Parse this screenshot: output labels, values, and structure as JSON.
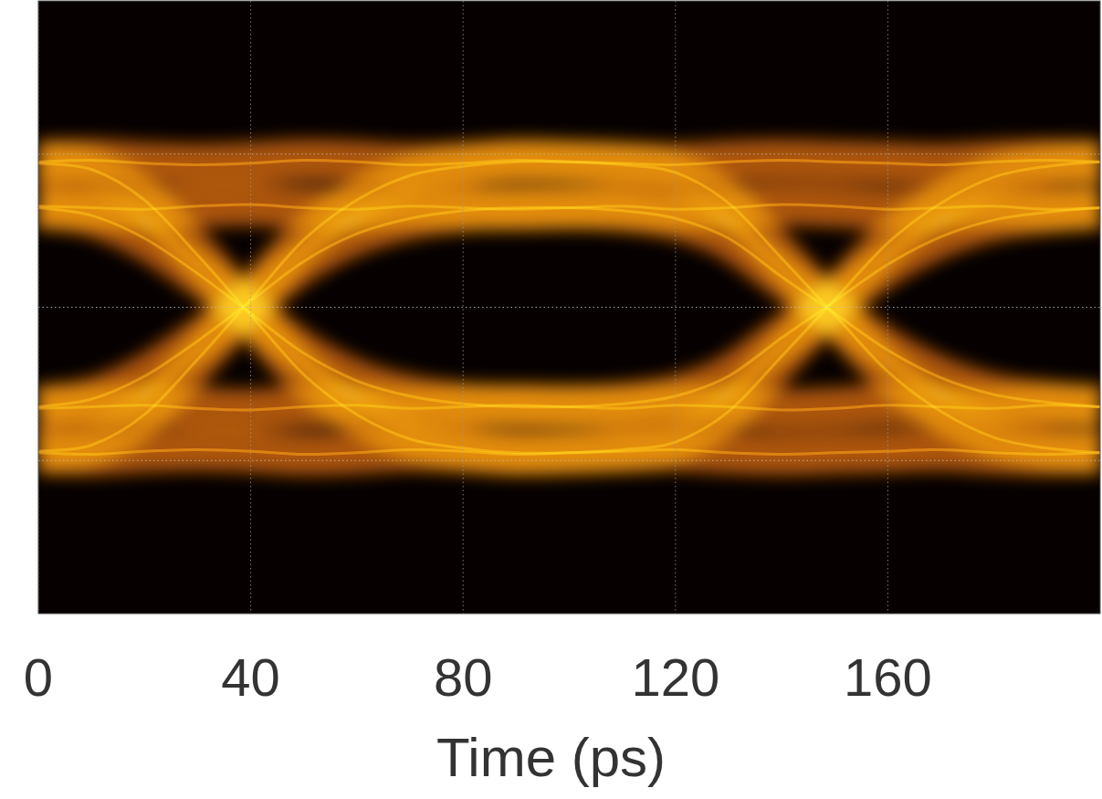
{
  "chart_data": {
    "type": "eye_diagram",
    "x_label": "Time (ps)",
    "x": [
      0,
      10,
      20,
      30,
      40,
      50,
      60,
      70,
      80,
      90,
      100,
      110,
      120,
      130,
      140,
      150,
      160,
      170,
      180,
      190,
      200
    ],
    "xlim": [
      0,
      200
    ],
    "xticks": [
      0,
      40,
      80,
      120,
      160
    ],
    "ylim": [
      -2,
      2
    ],
    "yticks": [
      -1,
      0,
      1
    ],
    "grid": true,
    "tick_labels": "x",
    "color": "#ff6e0a",
    "series": [
      {
        "values": [
          -0.95,
          -0.96,
          -0.94,
          -0.93,
          -0.94,
          -0.96,
          -0.95,
          -0.93,
          -0.94,
          -0.96,
          -0.95,
          -0.94,
          -0.93,
          -0.95,
          -0.96,
          -0.95,
          -0.94,
          -0.93,
          -0.95,
          -0.96,
          -0.95
        ]
      },
      {
        "values": [
          -0.95,
          -0.96,
          -0.94,
          -0.93,
          -0.94,
          -0.96,
          -0.95,
          -0.93,
          -0.94,
          -0.96,
          -0.95,
          -0.93,
          -0.88,
          -0.68,
          -0.32,
          0.05,
          0.42,
          0.68,
          0.85,
          0.92,
          0.95
        ]
      },
      {
        "values": [
          -0.94,
          -0.9,
          -0.7,
          -0.34,
          0.05,
          0.44,
          0.7,
          0.86,
          0.92,
          0.95,
          0.95,
          0.93,
          0.88,
          0.68,
          0.32,
          -0.05,
          -0.42,
          -0.68,
          -0.85,
          -0.92,
          -0.95
        ]
      },
      {
        "values": [
          -0.94,
          -0.9,
          -0.7,
          -0.34,
          0.05,
          0.44,
          0.7,
          0.86,
          0.92,
          0.95,
          0.95,
          0.94,
          0.93,
          0.95,
          0.96,
          0.95,
          0.94,
          0.93,
          0.95,
          0.96,
          0.95
        ]
      },
      {
        "values": [
          0.94,
          0.9,
          0.7,
          0.34,
          -0.05,
          -0.44,
          -0.7,
          -0.86,
          -0.92,
          -0.95,
          -0.95,
          -0.94,
          -0.93,
          -0.95,
          -0.96,
          -0.95,
          -0.94,
          -0.93,
          -0.95,
          -0.96,
          -0.95
        ]
      },
      {
        "values": [
          0.94,
          0.9,
          0.7,
          0.34,
          -0.05,
          -0.44,
          -0.7,
          -0.86,
          -0.92,
          -0.95,
          -0.95,
          -0.93,
          -0.88,
          -0.68,
          -0.32,
          0.05,
          0.42,
          0.68,
          0.85,
          0.92,
          0.95
        ]
      },
      {
        "values": [
          0.95,
          0.96,
          0.94,
          0.93,
          0.94,
          0.96,
          0.95,
          0.93,
          0.94,
          0.96,
          0.95,
          0.93,
          0.88,
          0.68,
          0.32,
          -0.05,
          -0.42,
          -0.68,
          -0.85,
          -0.92,
          -0.95
        ]
      },
      {
        "values": [
          0.95,
          0.96,
          0.94,
          0.93,
          0.94,
          0.96,
          0.95,
          0.93,
          0.94,
          0.96,
          0.95,
          0.94,
          0.93,
          0.95,
          0.96,
          0.95,
          0.94,
          0.93,
          0.95,
          0.96,
          0.95
        ]
      },
      {
        "values": [
          -0.66,
          -0.65,
          -0.64,
          -0.66,
          -0.67,
          -0.65,
          -0.64,
          -0.66,
          -0.65,
          -0.64,
          -0.65,
          -0.66,
          -0.64,
          -0.65,
          -0.67,
          -0.66,
          -0.64,
          -0.65,
          -0.66,
          -0.64,
          -0.65
        ]
      },
      {
        "values": [
          -0.66,
          -0.65,
          -0.64,
          -0.66,
          -0.67,
          -0.65,
          -0.64,
          -0.66,
          -0.65,
          -0.64,
          -0.65,
          -0.63,
          -0.58,
          -0.45,
          -0.2,
          0.04,
          0.28,
          0.46,
          0.57,
          0.62,
          0.65
        ]
      },
      {
        "values": [
          -0.65,
          -0.6,
          -0.45,
          -0.22,
          0.04,
          0.3,
          0.48,
          0.58,
          0.63,
          0.65,
          0.65,
          0.63,
          0.58,
          0.45,
          0.2,
          -0.04,
          -0.28,
          -0.46,
          -0.57,
          -0.62,
          -0.65
        ]
      },
      {
        "values": [
          -0.65,
          -0.6,
          -0.45,
          -0.22,
          0.04,
          0.3,
          0.48,
          0.58,
          0.63,
          0.65,
          0.65,
          0.66,
          0.64,
          0.65,
          0.67,
          0.66,
          0.64,
          0.65,
          0.66,
          0.64,
          0.65
        ]
      },
      {
        "values": [
          0.65,
          0.6,
          0.45,
          0.22,
          -0.04,
          -0.3,
          -0.48,
          -0.58,
          -0.63,
          -0.65,
          -0.65,
          -0.66,
          -0.64,
          -0.65,
          -0.67,
          -0.66,
          -0.64,
          -0.65,
          -0.66,
          -0.64,
          -0.65
        ]
      },
      {
        "values": [
          0.65,
          0.6,
          0.45,
          0.22,
          -0.04,
          -0.3,
          -0.48,
          -0.58,
          -0.63,
          -0.65,
          -0.65,
          -0.63,
          -0.58,
          -0.45,
          -0.2,
          0.04,
          0.28,
          0.46,
          0.57,
          0.62,
          0.65
        ]
      },
      {
        "values": [
          0.66,
          0.65,
          0.64,
          0.66,
          0.67,
          0.65,
          0.64,
          0.66,
          0.65,
          0.64,
          0.65,
          0.63,
          0.58,
          0.45,
          0.2,
          -0.04,
          -0.28,
          -0.46,
          -0.57,
          -0.62,
          -0.65
        ]
      },
      {
        "values": [
          0.66,
          0.65,
          0.64,
          0.66,
          0.67,
          0.65,
          0.64,
          0.66,
          0.65,
          0.64,
          0.65,
          0.66,
          0.64,
          0.65,
          0.67,
          0.66,
          0.64,
          0.65,
          0.66,
          0.64,
          0.65
        ]
      }
    ]
  }
}
